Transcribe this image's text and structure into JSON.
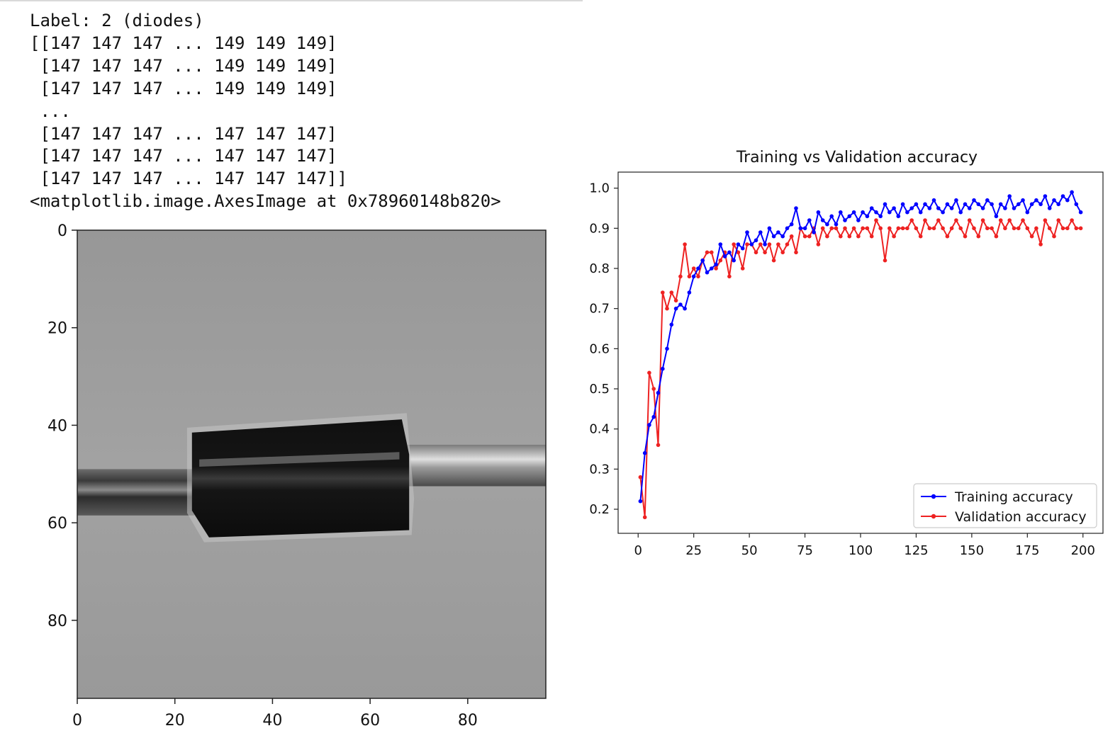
{
  "cell_output": {
    "lines": [
      "Label: 2 (diodes)",
      "[[147 147 147 ... 149 149 149]",
      " [147 147 147 ... 149 149 149]",
      " [147 147 147 ... 149 149 149]",
      " ...",
      " [147 147 147 ... 147 147 147]",
      " [147 147 147 ... 147 147 147]",
      " [147 147 147 ... 147 147 147]]",
      "<matplotlib.image.AxesImage at 0x78960148b820>"
    ]
  },
  "image_plot": {
    "xticks": [
      "0",
      "20",
      "40",
      "60",
      "80"
    ],
    "yticks": [
      "0",
      "20",
      "40",
      "60",
      "80"
    ],
    "xlim": [
      0,
      96
    ],
    "ylim": [
      96,
      0
    ],
    "colormap": "gray"
  },
  "chart_data": {
    "type": "line",
    "title": "Training vs Validation accuracy",
    "xlabel": "",
    "ylabel": "",
    "xlim": [
      -9,
      209
    ],
    "ylim": [
      0.14,
      1.04
    ],
    "xticks": [
      "0",
      "25",
      "50",
      "75",
      "100",
      "125",
      "150",
      "175",
      "200"
    ],
    "yticks": [
      "0.2",
      "0.3",
      "0.4",
      "0.5",
      "0.6",
      "0.7",
      "0.8",
      "0.9",
      "1.0"
    ],
    "grid": false,
    "legend_position": "lower-right",
    "series": [
      {
        "name": "Training accuracy",
        "color": "#0000ff",
        "marker": "dot",
        "x": [
          1,
          3,
          5,
          7,
          9,
          11,
          13,
          15,
          17,
          19,
          21,
          23,
          25,
          27,
          29,
          31,
          33,
          35,
          37,
          39,
          41,
          43,
          45,
          47,
          49,
          51,
          53,
          55,
          57,
          59,
          61,
          63,
          65,
          67,
          69,
          71,
          73,
          75,
          77,
          79,
          81,
          83,
          85,
          87,
          89,
          91,
          93,
          95,
          97,
          99,
          101,
          103,
          105,
          107,
          109,
          111,
          113,
          115,
          117,
          119,
          121,
          123,
          125,
          127,
          129,
          131,
          133,
          135,
          137,
          139,
          141,
          143,
          145,
          147,
          149,
          151,
          153,
          155,
          157,
          159,
          161,
          163,
          165,
          167,
          169,
          171,
          173,
          175,
          177,
          179,
          181,
          183,
          185,
          187,
          189,
          191,
          193,
          195,
          197,
          199
        ],
        "values": [
          0.22,
          0.34,
          0.41,
          0.43,
          0.49,
          0.55,
          0.6,
          0.66,
          0.7,
          0.71,
          0.7,
          0.74,
          0.78,
          0.8,
          0.82,
          0.79,
          0.8,
          0.81,
          0.86,
          0.83,
          0.84,
          0.82,
          0.86,
          0.85,
          0.89,
          0.86,
          0.87,
          0.89,
          0.86,
          0.9,
          0.88,
          0.89,
          0.88,
          0.9,
          0.91,
          0.95,
          0.9,
          0.9,
          0.92,
          0.89,
          0.94,
          0.92,
          0.91,
          0.93,
          0.91,
          0.94,
          0.92,
          0.93,
          0.94,
          0.92,
          0.94,
          0.93,
          0.95,
          0.94,
          0.93,
          0.96,
          0.94,
          0.95,
          0.93,
          0.96,
          0.94,
          0.95,
          0.96,
          0.94,
          0.96,
          0.95,
          0.97,
          0.95,
          0.94,
          0.96,
          0.95,
          0.97,
          0.94,
          0.96,
          0.95,
          0.97,
          0.96,
          0.95,
          0.97,
          0.96,
          0.93,
          0.96,
          0.95,
          0.98,
          0.95,
          0.96,
          0.97,
          0.94,
          0.96,
          0.97,
          0.96,
          0.98,
          0.95,
          0.97,
          0.96,
          0.98,
          0.97,
          0.99,
          0.96,
          0.94
        ]
      },
      {
        "name": "Validation accuracy",
        "color": "#ee2222",
        "marker": "dot",
        "x": [
          1,
          3,
          5,
          7,
          9,
          11,
          13,
          15,
          17,
          19,
          21,
          23,
          25,
          27,
          29,
          31,
          33,
          35,
          37,
          39,
          41,
          43,
          45,
          47,
          49,
          51,
          53,
          55,
          57,
          59,
          61,
          63,
          65,
          67,
          69,
          71,
          73,
          75,
          77,
          79,
          81,
          83,
          85,
          87,
          89,
          91,
          93,
          95,
          97,
          99,
          101,
          103,
          105,
          107,
          109,
          111,
          113,
          115,
          117,
          119,
          121,
          123,
          125,
          127,
          129,
          131,
          133,
          135,
          137,
          139,
          141,
          143,
          145,
          147,
          149,
          151,
          153,
          155,
          157,
          159,
          161,
          163,
          165,
          167,
          169,
          171,
          173,
          175,
          177,
          179,
          181,
          183,
          185,
          187,
          189,
          191,
          193,
          195,
          197,
          199
        ],
        "values": [
          0.28,
          0.18,
          0.54,
          0.5,
          0.36,
          0.74,
          0.7,
          0.74,
          0.72,
          0.78,
          0.86,
          0.78,
          0.8,
          0.78,
          0.82,
          0.84,
          0.84,
          0.8,
          0.82,
          0.84,
          0.78,
          0.86,
          0.84,
          0.8,
          0.86,
          0.86,
          0.84,
          0.86,
          0.84,
          0.86,
          0.82,
          0.86,
          0.84,
          0.86,
          0.88,
          0.84,
          0.9,
          0.88,
          0.88,
          0.9,
          0.86,
          0.9,
          0.88,
          0.9,
          0.9,
          0.88,
          0.9,
          0.88,
          0.9,
          0.88,
          0.9,
          0.9,
          0.88,
          0.92,
          0.9,
          0.82,
          0.9,
          0.88,
          0.9,
          0.9,
          0.9,
          0.92,
          0.9,
          0.88,
          0.92,
          0.9,
          0.9,
          0.92,
          0.9,
          0.88,
          0.9,
          0.92,
          0.9,
          0.88,
          0.92,
          0.9,
          0.88,
          0.92,
          0.9,
          0.9,
          0.88,
          0.92,
          0.9,
          0.92,
          0.9,
          0.9,
          0.92,
          0.9,
          0.88,
          0.9,
          0.86,
          0.92,
          0.9,
          0.88,
          0.92,
          0.9,
          0.9,
          0.92,
          0.9,
          0.9
        ]
      }
    ]
  }
}
